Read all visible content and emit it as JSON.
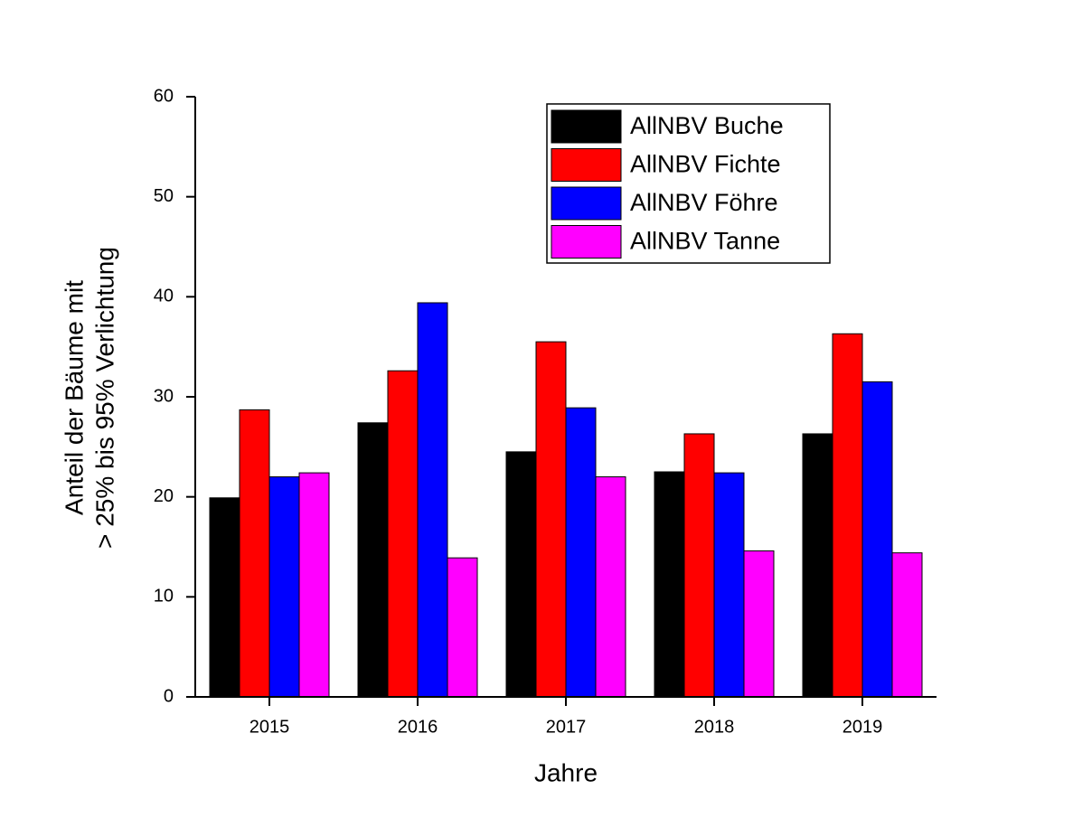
{
  "chart_data": {
    "type": "bar",
    "categories": [
      "2015",
      "2016",
      "2017",
      "2018",
      "2019"
    ],
    "series": [
      {
        "name": "AllNBV Buche",
        "color": "#000000",
        "values": [
          19.9,
          27.4,
          24.5,
          22.5,
          26.3
        ]
      },
      {
        "name": "AllNBV Fichte",
        "color": "#ff0000",
        "values": [
          28.7,
          32.6,
          35.5,
          26.3,
          36.3
        ]
      },
      {
        "name": "AllNBV Föhre",
        "color": "#0000ff",
        "values": [
          22.0,
          39.4,
          28.9,
          22.4,
          31.5
        ]
      },
      {
        "name": "AllNBV Tanne",
        "color": "#ff00ff",
        "values": [
          22.4,
          13.9,
          22.0,
          14.6,
          14.4
        ]
      }
    ],
    "xlabel": "Jahre",
    "ylabel": [
      "Anteil der Bäume mit",
      "> 25% bis 95% Verlichtung"
    ],
    "ylim": [
      0,
      60
    ],
    "yticks": [
      0,
      10,
      20,
      30,
      40,
      50,
      60
    ],
    "legend": "upper right",
    "grid": false
  }
}
